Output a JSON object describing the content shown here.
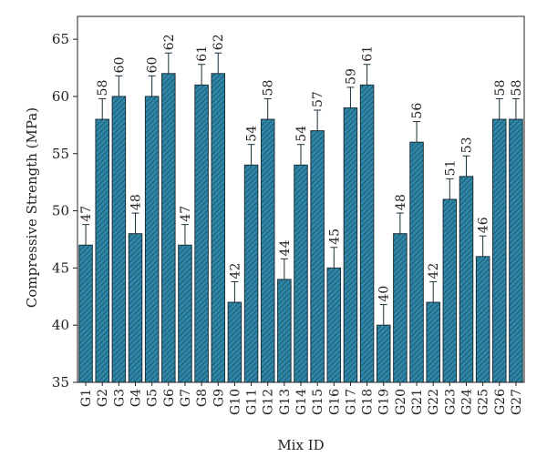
{
  "chart_data": {
    "type": "bar",
    "xlabel": "Mix ID",
    "ylabel": "Compressive Strength (MPa)",
    "ylim": [
      35,
      67
    ],
    "yticks": [
      35,
      40,
      45,
      50,
      55,
      60,
      65
    ],
    "categories": [
      "G1",
      "G2",
      "G3",
      "G4",
      "G5",
      "G6",
      "G7",
      "G8",
      "G9",
      "G10",
      "G11",
      "G12",
      "G13",
      "G14",
      "G15",
      "G16",
      "G17",
      "G18",
      "G19",
      "G20",
      "G21",
      "G22",
      "G23",
      "G24",
      "G25",
      "G26",
      "G27"
    ],
    "values": [
      47,
      58,
      60,
      48,
      60,
      62,
      47,
      61,
      62,
      42,
      54,
      58,
      44,
      54,
      57,
      45,
      59,
      61,
      40,
      48,
      56,
      42,
      51,
      53,
      46,
      58,
      58
    ],
    "data_labels": [
      "47",
      "58",
      "60",
      "48",
      "60",
      "62",
      "47",
      "61",
      "62",
      "42",
      "54",
      "58",
      "44",
      "54",
      "57",
      "45",
      "59",
      "61",
      "40",
      "48",
      "56",
      "42",
      "51",
      "53",
      "46",
      "58",
      "58"
    ],
    "error": 1.8,
    "bar_color": "#2f87a8",
    "hatch_color": "#174e63",
    "grid": false
  }
}
